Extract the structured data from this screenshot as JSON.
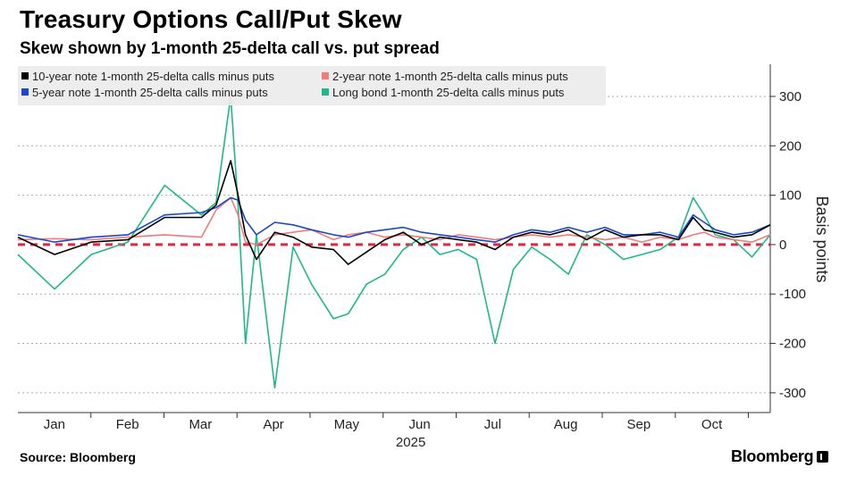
{
  "chart_data": {
    "type": "line",
    "title": "Treasury Options Call/Put Skew",
    "subtitle": "Skew shown by 1-month 25-delta call vs. put spread",
    "ylabel": "Basis points",
    "year_label": "2025",
    "ylim": [
      -340,
      365
    ],
    "yticks": [
      300,
      200,
      100,
      0,
      -100,
      -200,
      -300
    ],
    "ytick_labels": [
      "300",
      "200",
      "100",
      "0",
      "-100",
      "-200",
      "-300"
    ],
    "grid": true,
    "zero_line": {
      "value": 0,
      "color": "#e8253d",
      "style": "dashed"
    },
    "legend_position": "top-left",
    "months": [
      "Jan",
      "Feb",
      "Mar",
      "Apr",
      "May",
      "Jun",
      "Jul",
      "Aug",
      "Sep",
      "Oct"
    ],
    "x_unit": "trading-day index, Jan 2 to Oct 24, 2025",
    "x": [
      0,
      10,
      20,
      30,
      40,
      50,
      54,
      58,
      60,
      62,
      65,
      70,
      75,
      80,
      86,
      90,
      95,
      100,
      105,
      110,
      115,
      120,
      125,
      130,
      135,
      140,
      145,
      150,
      155,
      160,
      165,
      170,
      175,
      180,
      184,
      187,
      190,
      195,
      200,
      205
    ],
    "series": [
      {
        "name": "10-year note 1-month 25-delta calls minus puts",
        "color": "#000000",
        "values": [
          15,
          -20,
          5,
          10,
          55,
          55,
          80,
          170,
          100,
          20,
          -30,
          25,
          15,
          -5,
          -10,
          -40,
          -15,
          10,
          25,
          0,
          15,
          10,
          5,
          -10,
          15,
          25,
          20,
          30,
          10,
          30,
          15,
          20,
          20,
          10,
          55,
          30,
          25,
          15,
          20,
          40
        ]
      },
      {
        "name": "2-year note 1-month 25-delta calls minus puts",
        "color": "#f07b7b",
        "values": [
          10,
          12,
          10,
          15,
          20,
          15,
          70,
          95,
          60,
          5,
          0,
          20,
          25,
          30,
          10,
          20,
          25,
          15,
          20,
          15,
          10,
          20,
          15,
          10,
          15,
          20,
          15,
          20,
          15,
          10,
          15,
          5,
          15,
          10,
          20,
          25,
          15,
          10,
          5,
          20
        ]
      },
      {
        "name": "5-year note 1-month 25-delta calls minus puts",
        "color": "#1a47c9",
        "values": [
          20,
          5,
          15,
          20,
          60,
          65,
          75,
          95,
          90,
          50,
          20,
          45,
          40,
          30,
          20,
          15,
          25,
          30,
          35,
          25,
          20,
          15,
          10,
          5,
          20,
          30,
          25,
          35,
          25,
          35,
          20,
          20,
          25,
          15,
          60,
          45,
          30,
          20,
          25,
          40
        ]
      },
      {
        "name": "Long bond 1-month 25-delta calls minus puts",
        "color": "#1fb88a",
        "values": [
          -20,
          -90,
          -20,
          5,
          120,
          60,
          85,
          300,
          80,
          -200,
          20,
          -290,
          -5,
          -80,
          -150,
          -140,
          -80,
          -60,
          -10,
          15,
          -20,
          -10,
          -30,
          -200,
          -50,
          -5,
          -30,
          -60,
          20,
          0,
          -30,
          -20,
          -10,
          15,
          95,
          60,
          20,
          10,
          -25,
          20
        ]
      }
    ]
  },
  "footer": {
    "source": "Source: Bloomberg",
    "brand": "Bloomberg"
  }
}
